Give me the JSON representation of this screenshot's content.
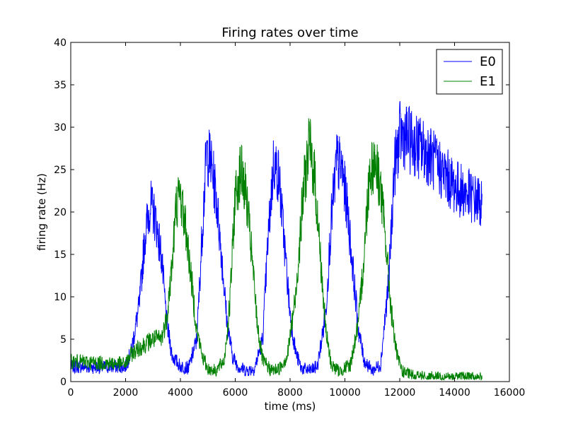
{
  "chart_data": {
    "type": "line",
    "title": "Firing rates over time",
    "xlabel": "time (ms)",
    "ylabel": "firing rate (Hz)",
    "xlim": [
      0,
      16000
    ],
    "ylim": [
      0,
      40
    ],
    "x_ticks": [
      0,
      2000,
      4000,
      6000,
      8000,
      10000,
      12000,
      14000,
      16000
    ],
    "y_ticks": [
      0,
      5,
      10,
      15,
      20,
      25,
      30,
      35,
      40
    ],
    "x_tick_labels": [
      "0",
      "2000",
      "4000",
      "6000",
      "8000",
      "10000",
      "12000",
      "14000",
      "16000"
    ],
    "y_tick_labels": [
      "0",
      "5",
      "10",
      "15",
      "20",
      "25",
      "30",
      "35",
      "40"
    ],
    "grid": false,
    "legend_position": "top-right",
    "series": [
      {
        "name": "E0",
        "color": "#0000ff",
        "x": [
          0,
          1000,
          2000,
          2200,
          2500,
          2700,
          2900,
          3100,
          3300,
          3500,
          3700,
          4000,
          4300,
          4600,
          4800,
          4950,
          5100,
          5300,
          5500,
          5700,
          5900,
          6100,
          6400,
          6700,
          7000,
          7200,
          7400,
          7600,
          7800,
          8000,
          8200,
          8400,
          8700,
          9000,
          9300,
          9500,
          9700,
          9900,
          10100,
          10300,
          10500,
          10700,
          11000,
          11300,
          11600,
          11800,
          12000,
          12200,
          12500,
          13000,
          13500,
          14000,
          14500,
          15000
        ],
        "y": [
          1.8,
          1.7,
          1.8,
          3.5,
          9,
          17,
          21,
          19,
          15,
          7,
          3,
          1.8,
          1.6,
          5,
          18,
          27,
          26,
          22,
          15,
          7,
          3,
          1.8,
          1.3,
          1.5,
          5,
          17,
          26,
          24,
          16,
          8,
          3.5,
          1.6,
          1.3,
          1.8,
          8,
          19,
          26,
          25,
          20,
          13,
          6,
          2.5,
          1.3,
          2,
          12,
          25,
          29,
          29,
          28,
          27,
          25,
          23,
          22,
          21
        ]
      },
      {
        "name": "E1",
        "color": "#008000",
        "x": [
          0,
          1000,
          2000,
          2200,
          2500,
          3000,
          3300,
          3500,
          3700,
          3850,
          4000,
          4200,
          4400,
          4600,
          4800,
          5000,
          5300,
          5600,
          5800,
          6000,
          6200,
          6400,
          6600,
          6800,
          7000,
          7300,
          7600,
          7900,
          8200,
          8500,
          8700,
          8900,
          9100,
          9300,
          9500,
          9800,
          10200,
          10500,
          10700,
          10900,
          11100,
          11300,
          11500,
          11700,
          11900,
          12100,
          12500,
          13000,
          13500,
          14000,
          14500,
          15000
        ],
        "y": [
          2.4,
          2.2,
          2.1,
          3.2,
          4,
          5,
          5,
          7.5,
          14,
          21,
          22,
          18,
          12,
          6,
          3,
          1.5,
          1.3,
          2.5,
          9,
          22,
          25,
          22,
          15,
          7,
          2.5,
          1.3,
          1.5,
          3,
          10,
          23,
          28,
          24,
          15,
          6,
          2,
          1.2,
          2,
          7,
          15,
          25,
          26,
          23,
          16,
          8,
          3,
          1.2,
          0.7,
          0.6,
          0.5,
          0.5,
          0.5,
          0.5
        ]
      }
    ]
  }
}
